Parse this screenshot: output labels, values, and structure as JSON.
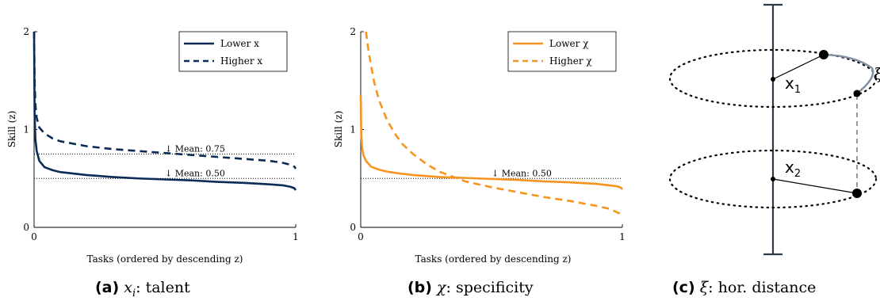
{
  "chart_data": [
    {
      "type": "line",
      "xlabel": "Tasks (ordered by descending z)",
      "ylabel": "Skill (z)",
      "xlim": [
        0,
        1
      ],
      "ylim": [
        0,
        2
      ],
      "xticks": [
        "0",
        "1"
      ],
      "yticks": [
        "0",
        "1",
        "2"
      ],
      "legend_position": "top-right",
      "series": [
        {
          "name": "Lower x",
          "style": "solid",
          "color": "#0b2a55",
          "x": [
            0,
            0.002,
            0.005,
            0.01,
            0.02,
            0.04,
            0.07,
            0.1,
            0.2,
            0.3,
            0.4,
            0.5,
            0.6,
            0.7,
            0.8,
            0.9,
            0.95,
            0.98,
            0.995,
            1.0
          ],
          "y": [
            2.0,
            1.15,
            0.9,
            0.78,
            0.68,
            0.615,
            0.585,
            0.565,
            0.535,
            0.515,
            0.5,
            0.49,
            0.48,
            0.465,
            0.455,
            0.44,
            0.43,
            0.415,
            0.4,
            0.38
          ]
        },
        {
          "name": "Higher x",
          "style": "dashed",
          "color": "#0b2a55",
          "x": [
            0,
            0.002,
            0.005,
            0.01,
            0.02,
            0.04,
            0.07,
            0.1,
            0.2,
            0.3,
            0.4,
            0.5,
            0.6,
            0.7,
            0.8,
            0.9,
            0.95,
            0.98,
            0.995,
            1.0
          ],
          "y": [
            2.0,
            1.5,
            1.25,
            1.12,
            1.02,
            0.96,
            0.91,
            0.88,
            0.83,
            0.8,
            0.78,
            0.76,
            0.74,
            0.72,
            0.7,
            0.68,
            0.66,
            0.64,
            0.62,
            0.6
          ]
        }
      ],
      "reference_lines": [
        {
          "y": 0.75,
          "label": "↓ Mean: 0.75",
          "label_x": 0.5
        },
        {
          "y": 0.5,
          "label": "↓ Mean: 0.50",
          "label_x": 0.5
        }
      ]
    },
    {
      "type": "line",
      "xlabel": "Tasks (ordered by descending z)",
      "ylabel": "Skill (z)",
      "xlim": [
        0,
        1
      ],
      "ylim": [
        0,
        2
      ],
      "xticks": [
        "0",
        "1"
      ],
      "yticks": [
        "0",
        "1",
        "2"
      ],
      "legend_position": "top-right",
      "series": [
        {
          "name": "Lower χ",
          "style": "solid",
          "color": "#f7931e",
          "x": [
            0,
            0.002,
            0.005,
            0.01,
            0.02,
            0.04,
            0.07,
            0.1,
            0.15,
            0.2,
            0.3,
            0.4,
            0.5,
            0.6,
            0.7,
            0.8,
            0.9,
            0.95,
            0.98,
            0.995,
            1.0
          ],
          "y": [
            1.35,
            0.95,
            0.82,
            0.74,
            0.68,
            0.62,
            0.59,
            0.57,
            0.55,
            0.535,
            0.515,
            0.505,
            0.495,
            0.485,
            0.47,
            0.46,
            0.445,
            0.43,
            0.42,
            0.405,
            0.39
          ]
        },
        {
          "name": "Higher χ",
          "style": "dashed",
          "color": "#f7931e",
          "x": [
            0.02,
            0.025,
            0.03,
            0.04,
            0.05,
            0.07,
            0.1,
            0.13,
            0.16,
            0.2,
            0.25,
            0.3,
            0.4,
            0.5,
            0.6,
            0.7,
            0.8,
            0.9,
            0.95,
            1.0
          ],
          "y": [
            2.0,
            1.9,
            1.8,
            1.65,
            1.5,
            1.3,
            1.1,
            0.96,
            0.85,
            0.75,
            0.65,
            0.57,
            0.47,
            0.41,
            0.36,
            0.31,
            0.27,
            0.22,
            0.19,
            0.13
          ]
        }
      ],
      "reference_lines": [
        {
          "y": 0.5,
          "label": "↓ Mean: 0.50",
          "label_x": 0.5
        }
      ]
    }
  ],
  "diagram": {
    "x1_label": "x",
    "x1_sub": "1",
    "x2_label": "x",
    "x2_sub": "2",
    "xi_label": "ξ"
  },
  "captions": [
    {
      "label": "(a)",
      "symbol": "x",
      "symbol_sub": "i",
      "rest": ": talent"
    },
    {
      "label": "(b)",
      "symbol": "χ",
      "symbol_sub": "",
      "rest": ": specificity"
    },
    {
      "label": "(c)",
      "symbol": "ξ",
      "symbol_sub": "",
      "rest": ": hor. distance"
    }
  ]
}
